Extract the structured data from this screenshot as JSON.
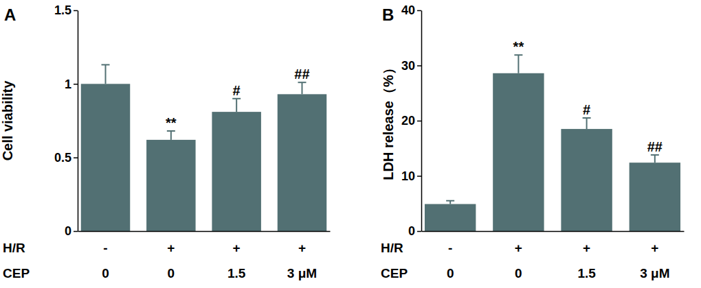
{
  "chart_data": [
    {
      "type": "bar",
      "panel": "A",
      "y_label": "Cell viability",
      "category_rows": [
        "H/R",
        "CEP"
      ],
      "categories": [
        [
          "-",
          "0"
        ],
        [
          "+",
          "0"
        ],
        [
          "+",
          "1.5"
        ],
        [
          "+",
          "3 μM"
        ]
      ],
      "values": [
        1.0,
        0.62,
        0.81,
        0.93
      ],
      "errors": [
        0.13,
        0.06,
        0.09,
        0.08
      ],
      "annotations": [
        null,
        "**",
        "#",
        "##"
      ],
      "color": "#527073",
      "ylim": [
        0,
        1.5
      ],
      "yticks": [
        0,
        0.5,
        1,
        1.5
      ],
      "grid": false
    },
    {
      "type": "bar",
      "panel": "B",
      "y_label": "LDH release（%）",
      "category_rows": [
        "H/R",
        "CEP"
      ],
      "categories": [
        [
          "-",
          "0"
        ],
        [
          "+",
          "0"
        ],
        [
          "+",
          "1.5"
        ],
        [
          "+",
          "3 μM"
        ]
      ],
      "values": [
        4.9,
        28.6,
        18.5,
        12.4
      ],
      "errors": [
        0.6,
        3.3,
        2.0,
        1.4
      ],
      "annotations": [
        null,
        "**",
        "#",
        "##"
      ],
      "color": "#527073",
      "ylim": [
        0,
        40
      ],
      "yticks": [
        0,
        10,
        20,
        30,
        40
      ],
      "grid": false
    }
  ]
}
